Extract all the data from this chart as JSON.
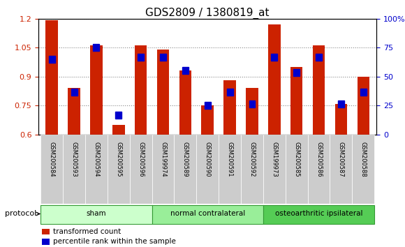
{
  "title": "GDS2809 / 1380819_at",
  "samples": [
    "GSM200584",
    "GSM200593",
    "GSM200594",
    "GSM200595",
    "GSM200596",
    "GSM199974",
    "GSM200589",
    "GSM200590",
    "GSM200591",
    "GSM200592",
    "GSM199973",
    "GSM200585",
    "GSM200586",
    "GSM200587",
    "GSM200588"
  ],
  "red_values": [
    1.19,
    0.84,
    1.06,
    0.65,
    1.06,
    1.04,
    0.93,
    0.75,
    0.88,
    0.84,
    1.17,
    0.95,
    1.06,
    0.76,
    0.9
  ],
  "blue_values": [
    0.99,
    0.82,
    1.05,
    0.7,
    1.0,
    1.0,
    0.93,
    0.75,
    0.82,
    0.76,
    1.0,
    0.92,
    1.0,
    0.76,
    0.82
  ],
  "ylim": [
    0.6,
    1.2
  ],
  "yticks": [
    0.6,
    0.75,
    0.9,
    1.05,
    1.2
  ],
  "right_yticks": [
    0,
    25,
    50,
    75,
    100
  ],
  "groups": [
    {
      "label": "sham",
      "start": 0,
      "end": 5
    },
    {
      "label": "normal contralateral",
      "start": 5,
      "end": 10
    },
    {
      "label": "osteoarthritic ipsilateral",
      "start": 10,
      "end": 15
    }
  ],
  "group_colors": [
    "#ccffcc",
    "#99ee99",
    "#55cc55"
  ],
  "group_edge_color": "#339933",
  "red_color": "#cc2200",
  "blue_color": "#0000cc",
  "bar_width": 0.55,
  "grid_color": "#888888",
  "tick_label_color_left": "#cc2200",
  "tick_label_color_right": "#0000cc",
  "legend_red": "transformed count",
  "legend_blue": "percentile rank within the sample",
  "protocol_label": "protocol",
  "title_fontsize": 11,
  "xtick_fontsize": 6,
  "ytick_fontsize": 8,
  "legend_fontsize": 7.5,
  "proto_fontsize": 7.5
}
